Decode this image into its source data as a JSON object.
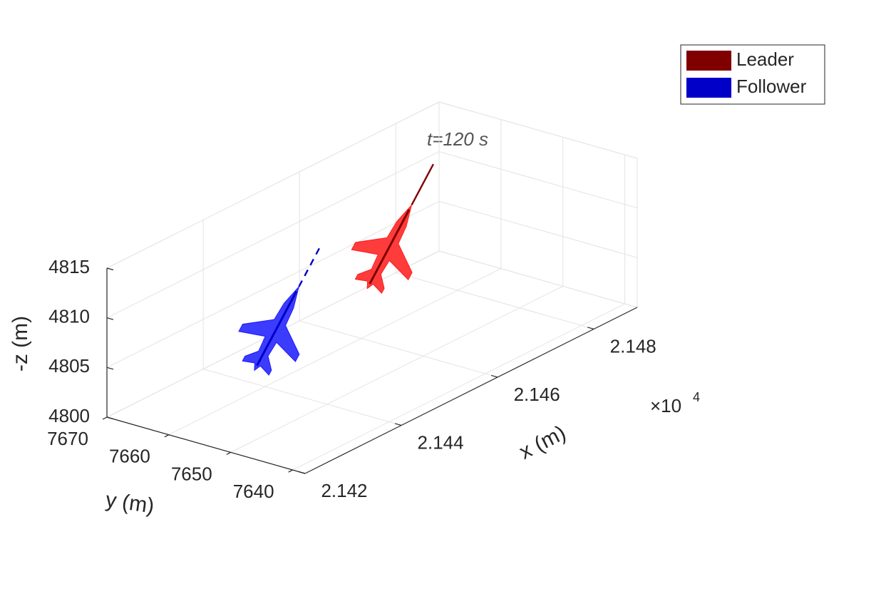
{
  "chart_data": {
    "type": "scatter3d",
    "annotation": "t=120 s",
    "xlabel": "x (m)",
    "ylabel": "y (m)",
    "zlabel": "-z (m)",
    "x_multiplier": "×10",
    "x_multiplier_exponent": "4",
    "xlim": [
      21420,
      21489
    ],
    "ylim": [
      7638,
      7670
    ],
    "zlim": [
      4800,
      4815
    ],
    "xticks": [
      {
        "value": 21420,
        "label": "2.142"
      },
      {
        "value": 21440,
        "label": "2.144"
      },
      {
        "value": 21460,
        "label": "2.146"
      },
      {
        "value": 21480,
        "label": "2.148"
      }
    ],
    "yticks": [
      7640,
      7650,
      7660,
      7670
    ],
    "zticks": [
      4800,
      4805,
      4810,
      4815
    ],
    "grid": true,
    "legend_position": "upper right",
    "series": [
      {
        "name": "Leader",
        "color": "#800000",
        "model_color": "#ff1a1a",
        "x": [
          21459
        ],
        "y": [
          7655
        ],
        "z": [
          4810
        ]
      },
      {
        "name": "Follower",
        "color": "#0000c8",
        "model_color": "#1a1aff",
        "x": [
          21442
        ],
        "y": [
          7660
        ],
        "z": [
          4805
        ]
      }
    ]
  }
}
